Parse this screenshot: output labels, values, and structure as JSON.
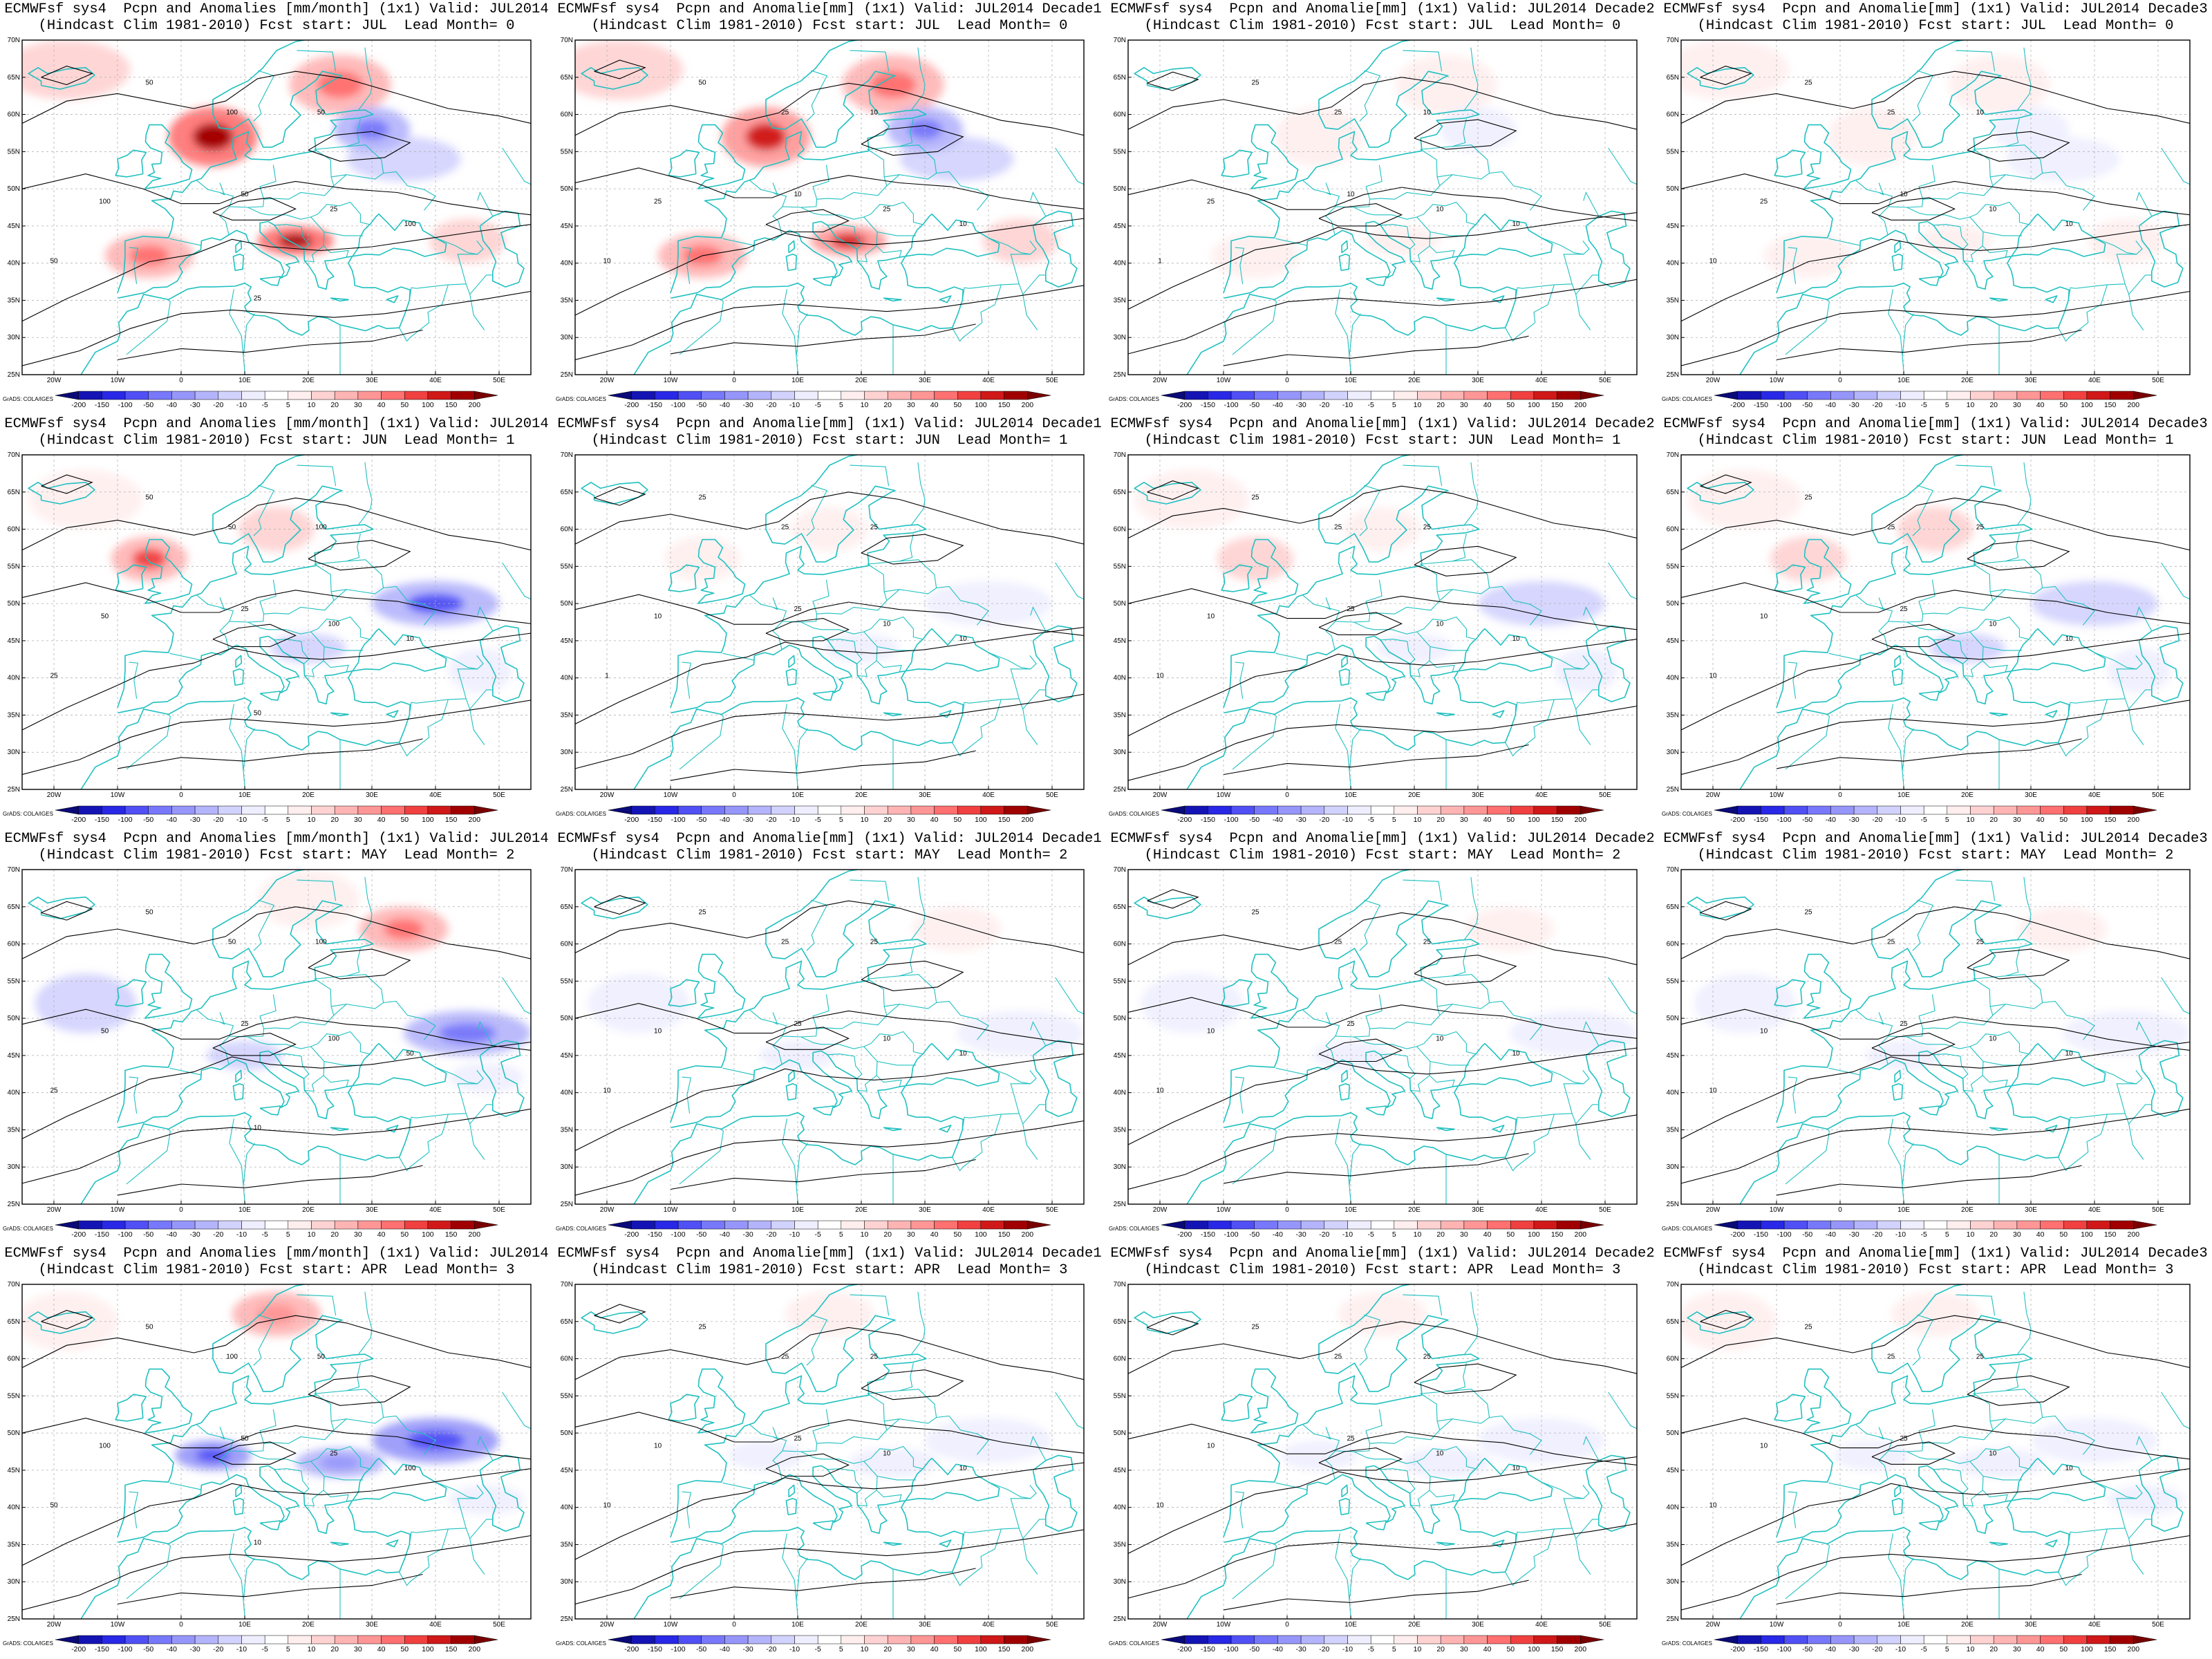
{
  "rows": [
    {
      "init": "JUL",
      "lead": "0",
      "panels": [
        {
          "title1": "ECMWFsf sys4  Pcpn and Anomalies [mm/month] (1x1) Valid: JUL2014",
          "title2": "(Hindcast Clim 1981-2010) Fcst start: JUL  Lead Month= 0",
          "contour_labels": [
            "50",
            "100",
            "50",
            "100",
            "50",
            "25",
            "100",
            "50",
            "25"
          ],
          "intensity": 1.0
        },
        {
          "title1": "ECMWFsf sys4  Pcpn and Anomalie[mm] (1x1) Valid: JUL2014 Decade1",
          "title2": "(Hindcast Clim 1981-2010) Fcst start: JUL  Lead Month= 0",
          "contour_labels": [
            "50",
            "25",
            "10",
            "25",
            "10",
            "25",
            "10",
            "10"
          ],
          "intensity": 0.9
        },
        {
          "title1": "ECMWFsf sys4  Pcpn and Anomalie[mm] (1x1) Valid: JUL2014 Decade2",
          "title2": "(Hindcast Clim 1981-2010) Fcst start: JUL  Lead Month= 0",
          "contour_labels": [
            "25",
            "25",
            "10",
            "25",
            "10",
            "10",
            "10",
            "1"
          ],
          "intensity": 0.25
        },
        {
          "title1": "ECMWFsf sys4  Pcpn and Anomalie[mm] (1x1) Valid: JUL2014 Decade3",
          "title2": "(Hindcast Clim 1981-2010) Fcst start: JUL  Lead Month= 0",
          "contour_labels": [
            "25",
            "25",
            "10",
            "25",
            "10",
            "10",
            "10",
            "10"
          ],
          "intensity": 0.3
        }
      ]
    },
    {
      "init": "JUN",
      "lead": "1",
      "panels": [
        {
          "title1": "ECMWFsf sys4  Pcpn and Anomalies [mm/month] (1x1) Valid: JUL2014",
          "title2": "(Hindcast Clim 1981-2010) Fcst start: JUN  Lead Month= 1",
          "contour_labels": [
            "50",
            "50",
            "100",
            "50",
            "25",
            "100",
            "10",
            "25",
            "50"
          ],
          "intensity": 0.7
        },
        {
          "title1": "ECMWFsf sys4  Pcpn and Anomalie[mm] (1x1) Valid: JUL2014 Decade1",
          "title2": "(Hindcast Clim 1981-2010) Fcst start: JUN  Lead Month= 1",
          "contour_labels": [
            "25",
            "25",
            "25",
            "10",
            "25",
            "10",
            "10",
            "1"
          ],
          "intensity": 0.2
        },
        {
          "title1": "ECMWFsf sys4  Pcpn and Anomalie[mm] (1x1) Valid: JUL2014 Decade2",
          "title2": "(Hindcast Clim 1981-2010) Fcst start: JUN  Lead Month= 1",
          "contour_labels": [
            "25",
            "25",
            "25",
            "10",
            "25",
            "10",
            "10",
            "10"
          ],
          "intensity": 0.35
        },
        {
          "title1": "ECMWFsf sys4  Pcpn and Anomalie[mm] (1x1) Valid: JUL2014 Decade3",
          "title2": "(Hindcast Clim 1981-2010) Fcst start: JUN  Lead Month= 1",
          "contour_labels": [
            "25",
            "25",
            "25",
            "10",
            "25",
            "10",
            "10",
            "10"
          ],
          "intensity": 0.45
        }
      ]
    },
    {
      "init": "MAY",
      "lead": "2",
      "panels": [
        {
          "title1": "ECMWFsf sys4  Pcpn and Anomalies [mm/month] (1x1) Valid: JUL2014",
          "title2": "(Hindcast Clim 1981-2010) Fcst start: MAY  Lead Month= 2",
          "contour_labels": [
            "50",
            "50",
            "100",
            "50",
            "25",
            "100",
            "50",
            "25",
            "10"
          ],
          "intensity": 0.6
        },
        {
          "title1": "ECMWFsf sys4  Pcpn and Anomalie[mm] (1x1) Valid: JUL2014 Decade1",
          "title2": "(Hindcast Clim 1981-2010) Fcst start: MAY  Lead Month= 2",
          "contour_labels": [
            "25",
            "25",
            "25",
            "10",
            "25",
            "10",
            "10",
            "10"
          ],
          "intensity": 0.2
        },
        {
          "title1": "ECMWFsf sys4  Pcpn and Anomalie[mm] (1x1) Valid: JUL2014 Decade2",
          "title2": "(Hindcast Clim 1981-2010) Fcst start: MAY  Lead Month= 2",
          "contour_labels": [
            "25",
            "25",
            "25",
            "10",
            "25",
            "10",
            "10",
            "10"
          ],
          "intensity": 0.2
        },
        {
          "title1": "ECMWFsf sys4  Pcpn and Anomalie[mm] (1x1) Valid: JUL2014 Decade3",
          "title2": "(Hindcast Clim 1981-2010) Fcst start: MAY  Lead Month= 2",
          "contour_labels": [
            "25",
            "25",
            "25",
            "10",
            "25",
            "10",
            "10",
            "10"
          ],
          "intensity": 0.25
        }
      ]
    },
    {
      "init": "APR",
      "lead": "3",
      "panels": [
        {
          "title1": "ECMWFsf sys4  Pcpn and Anomalies [mm/month] (1x1) Valid: JUL2014",
          "title2": "(Hindcast Clim 1981-2010) Fcst start: APR  Lead Month= 3",
          "contour_labels": [
            "50",
            "100",
            "50",
            "100",
            "50",
            "25",
            "100",
            "50",
            "10"
          ],
          "intensity": 0.75
        },
        {
          "title1": "ECMWFsf sys4  Pcpn and Anomalie[mm] (1x1) Valid: JUL2014 Decade1",
          "title2": "(Hindcast Clim 1981-2010) Fcst start: APR  Lead Month= 3",
          "contour_labels": [
            "25",
            "25",
            "25",
            "10",
            "25",
            "10",
            "10",
            "10"
          ],
          "intensity": 0.2
        },
        {
          "title1": "ECMWFsf sys4  Pcpn and Anomalie[mm] (1x1) Valid: JUL2014 Decade2",
          "title2": "(Hindcast Clim 1981-2010) Fcst start: APR  Lead Month= 3",
          "contour_labels": [
            "25",
            "25",
            "25",
            "10",
            "25",
            "10",
            "10",
            "10"
          ],
          "intensity": 0.25
        },
        {
          "title1": "ECMWFsf sys4  Pcpn and Anomalie[mm] (1x1) Valid: JUL2014 Decade3",
          "title2": "(Hindcast Clim 1981-2010) Fcst start: APR  Lead Month= 3",
          "contour_labels": [
            "25",
            "25",
            "25",
            "10",
            "25",
            "10",
            "10",
            "10"
          ],
          "intensity": 0.3
        }
      ]
    }
  ],
  "map": {
    "lon_min": -25,
    "lon_max": 55,
    "lat_min": 25,
    "lat_max": 70,
    "lat_labels": [
      "70N",
      "65N",
      "60N",
      "55N",
      "50N",
      "45N",
      "40N",
      "35N",
      "30N",
      "25N"
    ],
    "lon_labels": [
      "20W",
      "10W",
      "0",
      "10E",
      "20E",
      "30E",
      "40E",
      "50E"
    ],
    "coast_color": "#20c0c0",
    "contour_color": "#000000"
  },
  "colorbar": {
    "labels": [
      "-200",
      "-150",
      "-100",
      "-50",
      "-40",
      "-30",
      "-20",
      "-10",
      "-5",
      "5",
      "10",
      "20",
      "30",
      "40",
      "50",
      "100",
      "150",
      "200"
    ],
    "colors": [
      "#0a0a78",
      "#1414b4",
      "#2828e6",
      "#5050f5",
      "#7878fa",
      "#9696fa",
      "#b4b4fc",
      "#d2d2fe",
      "#eeeeff",
      "#ffffff",
      "#ffeeee",
      "#ffd2d2",
      "#ffb4b4",
      "#ff9696",
      "#ff7070",
      "#f04040",
      "#d01818",
      "#a00000",
      "#780000"
    ]
  },
  "credit": "GrADS: COLA/IGES"
}
